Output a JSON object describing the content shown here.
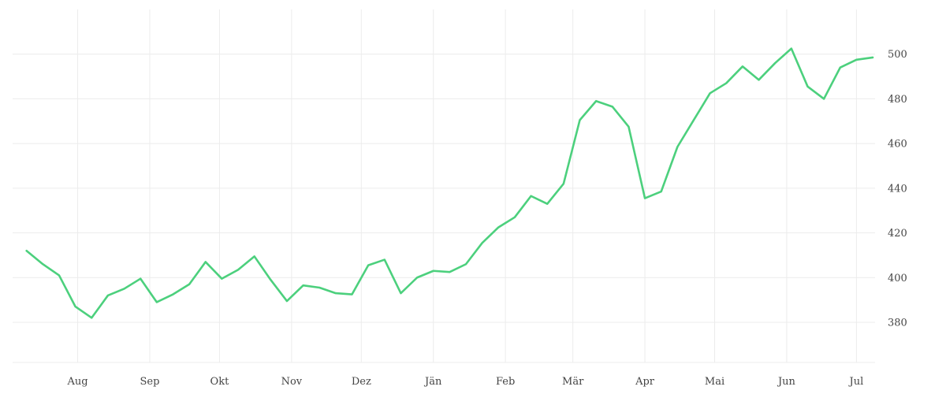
{
  "chart_data": {
    "type": "line",
    "title": "",
    "xlabel": "",
    "ylabel": "",
    "x_ticks": [
      "Aug",
      "Sep",
      "Okt",
      "Nov",
      "Dez",
      "Jän",
      "Feb",
      "Mär",
      "Apr",
      "Mai",
      "Jun",
      "Jul"
    ],
    "y_ticks": [
      380,
      400,
      420,
      440,
      460,
      480,
      500
    ],
    "ylim": [
      362,
      520
    ],
    "y_axis_position": "right",
    "grid": true,
    "legend": "none",
    "series": [
      {
        "color": "#4cd07d",
        "x": [
          "2023-07-10",
          "2023-07-17",
          "2023-07-24",
          "2023-07-31",
          "2023-08-07",
          "2023-08-14",
          "2023-08-21",
          "2023-08-28",
          "2023-09-04",
          "2023-09-11",
          "2023-09-18",
          "2023-09-25",
          "2023-10-02",
          "2023-10-09",
          "2023-10-16",
          "2023-10-23",
          "2023-10-30",
          "2023-11-06",
          "2023-11-13",
          "2023-11-20",
          "2023-11-27",
          "2023-12-04",
          "2023-12-11",
          "2023-12-18",
          "2023-12-25",
          "2024-01-01",
          "2024-01-08",
          "2024-01-15",
          "2024-01-22",
          "2024-01-29",
          "2024-02-05",
          "2024-02-12",
          "2024-02-19",
          "2024-02-26",
          "2024-03-04",
          "2024-03-11",
          "2024-03-18",
          "2024-03-25",
          "2024-04-01",
          "2024-04-08",
          "2024-04-15",
          "2024-04-22",
          "2024-04-29",
          "2024-05-06",
          "2024-05-13",
          "2024-05-20",
          "2024-05-27",
          "2024-06-03",
          "2024-06-10",
          "2024-06-17",
          "2024-06-24",
          "2024-07-01",
          "2024-07-08"
        ],
        "values": [
          412,
          406,
          401,
          387,
          382,
          392,
          395,
          399.5,
          389,
          392.5,
          397,
          407,
          399.5,
          403.5,
          409.5,
          399,
          389.5,
          396.5,
          395.5,
          393,
          392.5,
          405.5,
          408,
          393,
          400,
          403,
          402.5,
          406,
          415.5,
          422.5,
          427,
          436.5,
          433,
          442,
          470.5,
          479,
          476.5,
          467.5,
          435.5,
          438.5,
          458.5,
          470.5,
          482.5,
          487,
          494.5,
          488.5,
          496,
          502.5,
          485.5,
          480,
          494,
          497.5,
          498.5
        ]
      }
    ]
  }
}
